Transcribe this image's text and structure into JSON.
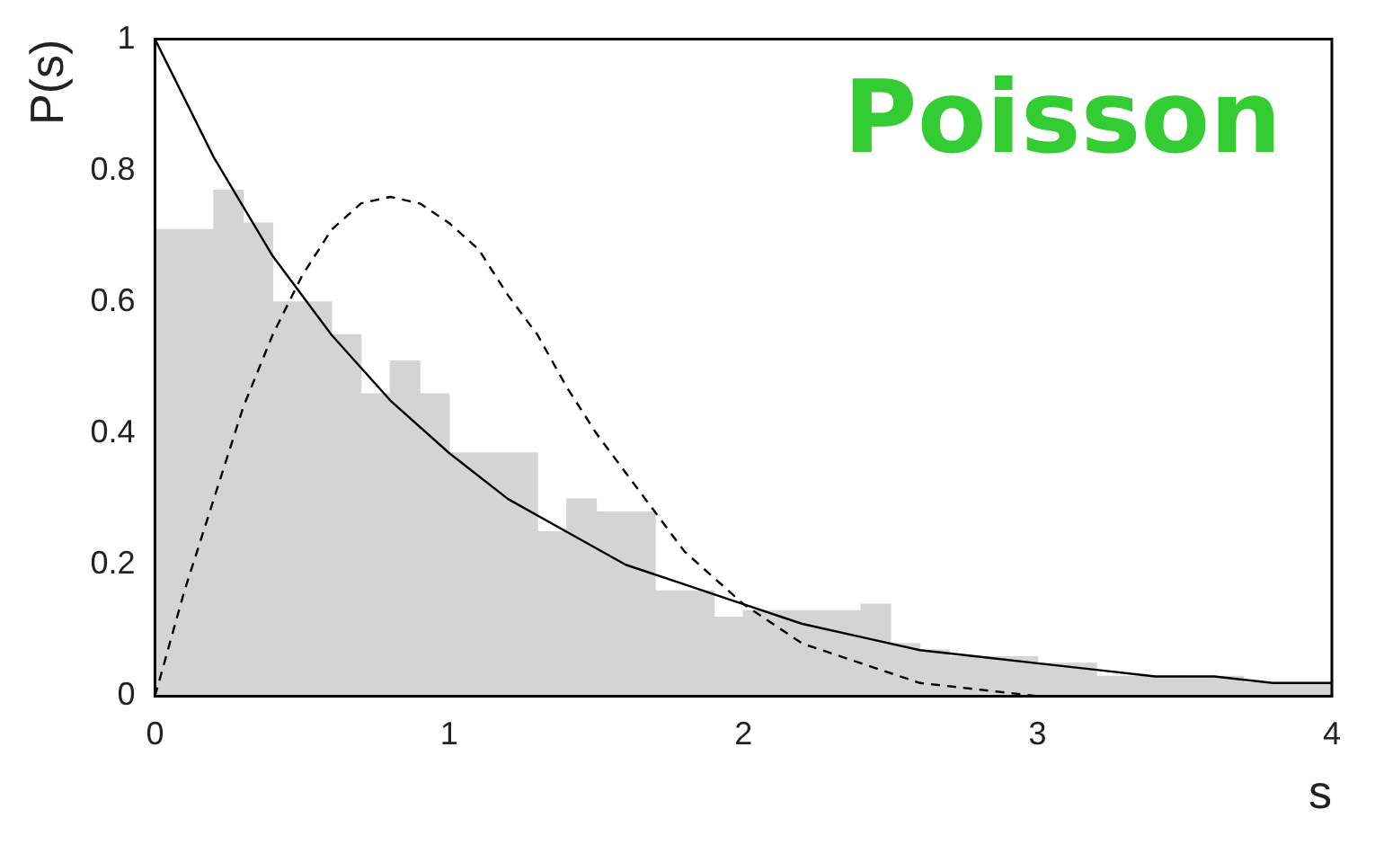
{
  "chart_data": {
    "type": "histogram",
    "xlabel": "s",
    "ylabel": "P(s)",
    "annotations": [
      "Poisson"
    ],
    "bins": [
      0,
      0.1,
      0.2,
      0.3,
      0.4,
      0.5,
      0.6,
      0.7,
      0.8,
      0.9,
      1,
      1.1,
      1.2,
      1.3,
      1.4,
      1.5,
      1.6,
      1.7,
      1.8,
      1.9,
      2,
      2.1,
      2.2,
      2.3,
      2.4,
      2.5,
      2.6,
      2.7,
      2.8,
      2.9,
      3,
      3.1,
      3.2,
      3.3,
      3.4,
      3.5,
      3.6,
      3.7,
      3.8,
      3.9,
      4
    ],
    "values": [
      0.71,
      0.71,
      0.77,
      0.72,
      0.6,
      0.6,
      0.55,
      0.46,
      0.51,
      0.46,
      0.37,
      0.37,
      0.37,
      0.25,
      0.3,
      0.28,
      0.28,
      0.16,
      0.16,
      0.12,
      0.13,
      0.13,
      0.13,
      0.13,
      0.14,
      0.08,
      0.07,
      0.06,
      0.06,
      0.06,
      0.05,
      0.05,
      0.03,
      0.03,
      0.03,
      0.03,
      0.03,
      0.02,
      0.02,
      0.02
    ],
    "color": "#d4d4d4",
    "series": [
      {
        "type": "line",
        "line_style": "solid",
        "color": "#000000",
        "x": [
          0,
          0.2,
          0.4,
          0.6,
          0.8,
          1,
          1.2,
          1.4,
          1.6,
          1.8,
          2,
          2.2,
          2.4,
          2.6,
          2.8,
          3,
          3.2,
          3.4,
          3.6,
          3.8,
          4
        ],
        "values": [
          1,
          0.82,
          0.67,
          0.55,
          0.45,
          0.37,
          0.3,
          0.25,
          0.2,
          0.17,
          0.14,
          0.11,
          0.09,
          0.07,
          0.06,
          0.05,
          0.04,
          0.03,
          0.03,
          0.02,
          0.02
        ]
      },
      {
        "type": "line",
        "line_style": "dashed",
        "color": "#000000",
        "x": [
          0,
          0.1,
          0.2,
          0.3,
          0.4,
          0.5,
          0.6,
          0.7,
          0.8,
          0.9,
          1,
          1.1,
          1.2,
          1.3,
          1.4,
          1.5,
          1.6,
          1.7,
          1.8,
          2,
          2.2,
          2.4,
          2.6,
          2.8,
          3,
          3.5,
          4
        ],
        "values": [
          0,
          0.16,
          0.3,
          0.44,
          0.55,
          0.64,
          0.71,
          0.75,
          0.76,
          0.75,
          0.72,
          0.68,
          0.61,
          0.55,
          0.47,
          0.4,
          0.34,
          0.28,
          0.22,
          0.14,
          0.08,
          0.05,
          0.02,
          0.01,
          0,
          0,
          0
        ]
      }
    ],
    "xlim": [
      0,
      4
    ],
    "xticks": [
      0,
      1,
      2,
      3,
      4
    ],
    "ylim": [
      0,
      1
    ],
    "yticks": [
      0,
      0.2,
      0.4,
      0.6,
      0.8,
      1
    ],
    "grid": false,
    "legend": false
  }
}
